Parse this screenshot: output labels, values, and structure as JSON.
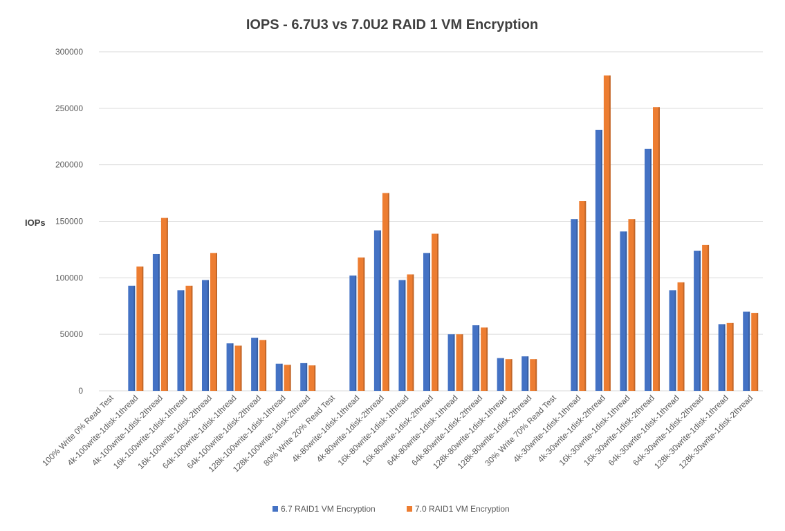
{
  "chart_data": {
    "type": "bar",
    "title": "IOPS - 6.7U3 vs 7.0U2 RAID 1 VM Encryption",
    "ylabel": "IOPs",
    "xlabel": "",
    "ylim": [
      0,
      300000
    ],
    "yticks": [
      "0",
      "50000",
      "100000",
      "150000",
      "200000",
      "250000",
      "300000"
    ],
    "grid": true,
    "legend_position": "bottom",
    "categories": [
      "100% Write 0% Read Test",
      "4k-100write-1disk-1thread",
      "4k-100write-1disk-2thread",
      "16k-100write-1disk-1thread",
      "16k-100write-1disk-2thread",
      "64k-100write-1disk-1thread",
      "64k-100write-1disk-2thread",
      "128k-100write-1disk-1thread",
      "128k-100write-1disk-2thread",
      "80% Write 20% Read Test",
      "4k-80write-1disk-1thread",
      "4k-80write-1disk-2thread",
      "16k-80write-1disk-1thread",
      "16k-80write-1disk-2thread",
      "64k-80write-1disk-1thread",
      "64k-80write-1disk-2thread",
      "128k-80write-1disk-1thread",
      "128k-80write-1disk-2thread",
      "30% Write 70% Read Test",
      "4k-30write-1disk-1thread",
      "4k-30write-1disk-2thread",
      "16k-30write-1disk-1thread",
      "16k-30write-1disk-2thread",
      "64k-30write-1disk-1thread",
      "64k-30write-1disk-2thread",
      "128k-30write-1disk-1thread",
      "128k-30write-1disk-2thread"
    ],
    "series": [
      {
        "name": "6.7 RAID1 VM Encryption",
        "color": "#4472c4",
        "values": [
          null,
          93000,
          121000,
          89000,
          98000,
          42000,
          47000,
          24000,
          24500,
          null,
          102000,
          142000,
          98000,
          122000,
          50000,
          58000,
          29000,
          30500,
          null,
          152000,
          231000,
          141000,
          214000,
          89000,
          124000,
          59000,
          70000
        ]
      },
      {
        "name": "7.0 RAID1 VM Encryption",
        "color": "#ed7d31",
        "values": [
          null,
          110000,
          153000,
          93000,
          122000,
          40000,
          45000,
          23000,
          22500,
          null,
          118000,
          175000,
          103000,
          139000,
          50000,
          56000,
          28000,
          28000,
          null,
          168000,
          279000,
          152000,
          251000,
          96000,
          129000,
          60000,
          69000
        ]
      }
    ]
  }
}
